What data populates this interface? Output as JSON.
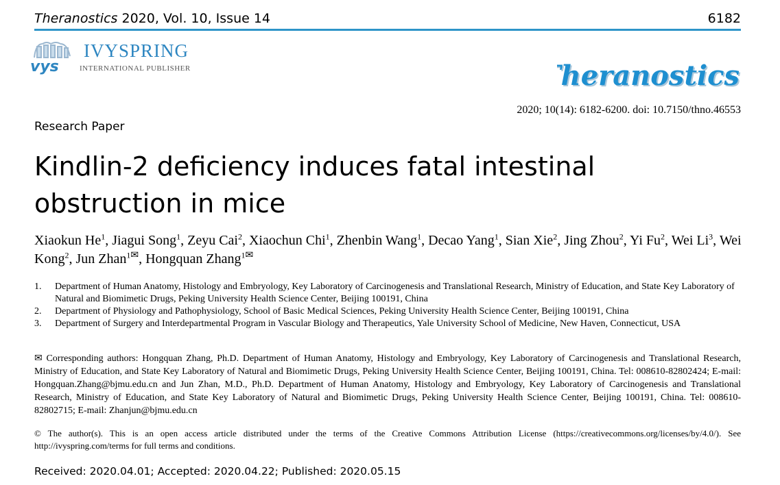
{
  "header": {
    "journal_name": "Theranostics",
    "journal_info": " 2020, Vol. 10, Issue 14",
    "page_number": "6182"
  },
  "publisher": {
    "logo_text": "vys",
    "name": "IVYSPRING",
    "subtitle": "INTERNATIONAL PUBLISHER",
    "brand_color": "#2e86c1"
  },
  "journal_logo": {
    "text": "Theranostics",
    "color": "#1e8fd0"
  },
  "citation": "2020; 10(14): 6182-6200. doi: 10.7150/thno.46553",
  "paper_type": "Research Paper",
  "title": "Kindlin-2 deficiency induces fatal intestinal obstruction in mice",
  "authors": [
    {
      "name": "Xiaokun He",
      "aff": "1",
      "sep": ", "
    },
    {
      "name": "Jiagui Song",
      "aff": "1",
      "sep": ", "
    },
    {
      "name": "Zeyu Cai",
      "aff": "2",
      "sep": ", "
    },
    {
      "name": "Xiaochun Chi",
      "aff": "1",
      "sep": ", "
    },
    {
      "name": "Zhenbin Wang",
      "aff": "1",
      "sep": ", "
    },
    {
      "name": "Decao Yang",
      "aff": "1",
      "sep": ", "
    },
    {
      "name": "Sian Xie",
      "aff": "2",
      "sep": ", "
    },
    {
      "name": "Jing Zhou",
      "aff": "2",
      "sep": ", "
    },
    {
      "name": "Yi Fu",
      "aff": "2",
      "sep": ", "
    },
    {
      "name": "Wei Li",
      "aff": "3",
      "sep": ", "
    },
    {
      "name": "Wei Kong",
      "aff": "2",
      "sep": ", "
    },
    {
      "name": "Jun Zhan",
      "aff": "1",
      "corr": "✉",
      "sep": ", "
    },
    {
      "name": "Hongquan Zhang",
      "aff": "1",
      "corr": "✉",
      "sep": ""
    }
  ],
  "affiliations": [
    {
      "num": "1.",
      "text": "Department of Human Anatomy, Histology and Embryology, Key Laboratory of Carcinogenesis and Translational Research, Ministry of Education, and State Key Laboratory of Natural and Biomimetic Drugs, Peking University Health Science Center, Beijing 100191, China"
    },
    {
      "num": "2.",
      "text": "Department of Physiology and Pathophysiology, School of Basic Medical Sciences, Peking University Health Science Center, Beijing 100191, China"
    },
    {
      "num": "3.",
      "text": "Department of Surgery and Interdepartmental Program in Vascular Biology and Therapeutics, Yale University School of Medicine, New Haven, Connecticut, USA"
    }
  ],
  "corresponding": "✉ Corresponding authors: Hongquan Zhang, Ph.D. Department of Human Anatomy, Histology and Embryology, Key Laboratory of Carcinogenesis and Translational Research, Ministry of Education, and State Key Laboratory of Natural and Biomimetic Drugs, Peking University Health Science Center, Beijing 100191, China. Tel: 008610-82802424; E-mail: Hongquan.Zhang@bjmu.edu.cn and Jun Zhan, M.D., Ph.D. Department of Human Anatomy, Histology and Embryology, Key Laboratory of Carcinogenesis and Translational Research, Ministry of Education, and State Key Laboratory of Natural and Biomimetic Drugs, Peking University Health Science Center, Beijing 100191, China. Tel: 008610-82802715; E-mail: Zhanjun@bjmu.edu.cn",
  "license": "© The author(s). This is an open access article distributed under the terms of the Creative Commons Attribution License (https://creativecommons.org/licenses/by/4.0/). See http://ivyspring.com/terms for full terms and conditions.",
  "dates": "Received: 2020.04.01; Accepted: 2020.04.22; Published: 2020.05.15",
  "colors": {
    "header_rule": "#2e95c8"
  }
}
